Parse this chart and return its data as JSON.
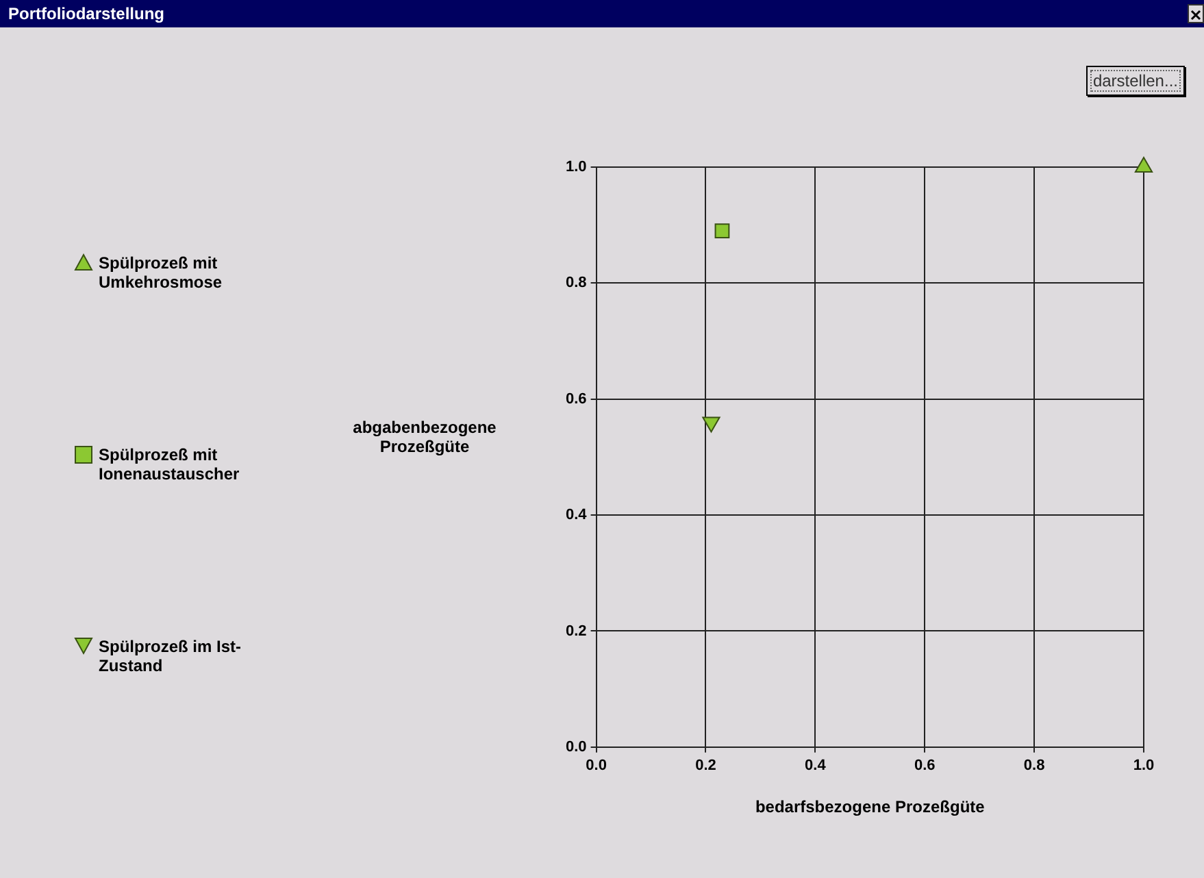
{
  "chart_data": {
    "type": "scatter",
    "title": "Portfoliodarstellung",
    "xlabel": "bedarfsbezogene Prozeßgüte",
    "ylabel": "abgabenbezogene Prozeßgüte",
    "annotations": [
      "darstellen..."
    ],
    "xlim": [
      0,
      1
    ],
    "xticks": [
      {
        "value": 0,
        "label": "0.0"
      },
      {
        "value": 0.2,
        "label": "0.2"
      },
      {
        "value": 0.4,
        "label": "0.4"
      },
      {
        "value": 0.6,
        "label": "0.6"
      },
      {
        "value": 0.8,
        "label": "0.8"
      },
      {
        "value": 1,
        "label": "1.0"
      }
    ],
    "ylim": [
      0,
      1
    ],
    "yticks": [
      {
        "value": 0,
        "label": "0.0"
      },
      {
        "value": 0.2,
        "label": "0.2"
      },
      {
        "value": 0.4,
        "label": "0.4"
      },
      {
        "value": 0.6,
        "label": "0.6"
      },
      {
        "value": 0.8,
        "label": "0.8"
      },
      {
        "value": 1,
        "label": "1.0"
      }
    ],
    "grid": true,
    "legend": "left",
    "series": [
      {
        "name": "Spülprozeß mit Umkehrosmose",
        "color": "#8cc832",
        "marker": "triangle",
        "x": [
          1.0
        ],
        "values": [
          1.0
        ]
      },
      {
        "name": "Spülprozeß mit Ionenaustauscher",
        "color": "#8cc832",
        "marker": "square",
        "x": [
          0.23
        ],
        "values": [
          0.89
        ]
      },
      {
        "name": "Spülprozeß im Ist-Zustand",
        "color": "#8cc832",
        "marker": "triangle-down",
        "x": [
          0.21
        ],
        "values": [
          0.56
        ]
      }
    ]
  }
}
